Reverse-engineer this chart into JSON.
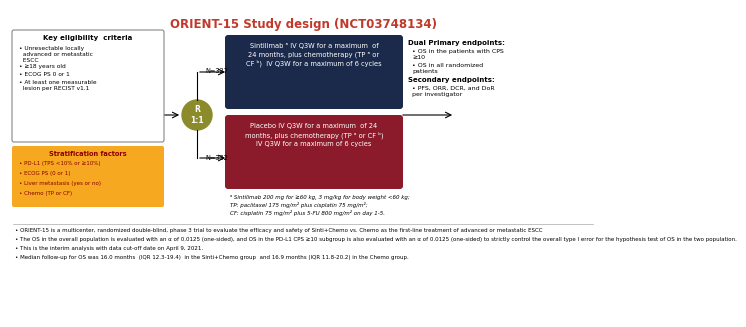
{
  "title": "ORIENT-15 Study design (NCT03748134)",
  "title_color": "#C0392B",
  "title_fontsize": 8.5,
  "bg_color": "#FFFFFF",
  "key_eligibility": {
    "title": "Key eligibility  criteria",
    "bullets": [
      "Unresectable locally\n  advanced or metastatic\n  ESCC",
      "≥18 years old",
      "ECOG PS 0 or 1",
      "At least one measurable\n  lesion per RECIST v1.1"
    ]
  },
  "stratification": {
    "title": "Stratification factors",
    "bullets": [
      "PD-L1 (TPS <10% or ≥10%)",
      "ECOG PS (0 or 1)",
      "Liver metastasis (yes or no)",
      "Chemo (TP or CF)"
    ],
    "box_color": "#F5A820",
    "text_color": "#8B0000"
  },
  "randomization": {
    "label": "R\n1:1",
    "color": "#8B8B2B"
  },
  "arm1": {
    "n": "N=327",
    "text": "Sintilimab ᵃ IV Q3W for a maximum  of\n24 months, plus chemotherapy (TP ᵃ or\nCF ᵇ)  IV Q3W for a maximum of 6 cycles",
    "box_color": "#1B2A4A"
  },
  "arm2": {
    "n": "N=332",
    "text": "Placebo IV Q3W for a maximum  of 24\nmonths, plus chemotherapy (TP ᵃ or CF ᵇ)\nIV Q3W for a maximum of 6 cycles",
    "box_color": "#8B1A2A"
  },
  "endpoints": {
    "dual_primary_title": "Dual Primary endpoints:",
    "dual_primary_bullets": [
      "OS in the patients with CPS\n≥10",
      "OS in all randomized\npatients"
    ],
    "secondary_title": "Secondary endpoints:",
    "secondary_bullets": [
      "PFS, ORR, DCR, and DoR\nper investigator"
    ]
  },
  "footnote": "ᵃ Sintilimab 200 mg for ≥60 kg, 3 mg/kg for body weight <60 kg;\nTP: paclitaxel 175 mg/m² plus cisplatin 75 mg/m²;\nCF: cisplatin 75 mg/m² plus 5-FU 800 mg/m² on day 1-5.",
  "bottom_bullets": [
    "ORIENT-15 is a multicenter, randomized double-blind, phase 3 trial to evaluate the efficacy and safety of Sinti+Chemo vs. Chemo as the first-line treatment of advanced or metastatic ESCC",
    "The OS in the overall population is evaluated with an α of 0.0125 (one-sided), and OS in the PD-L1 CPS ≥10 subgroup is also evaluated with an α of 0.0125 (one-sided) to strictly control the overall type I error for the hypothesis test of OS in the two population.",
    "This is the interim analysis with data cut-off date on April 9, 2021.",
    "Median follow-up for OS was 16.0 months  (IQR 12.3-19.4)  in the Sinti+Chemo group  and 16.9 months (IQR 11.8-20.2) in the Chemo group."
  ]
}
